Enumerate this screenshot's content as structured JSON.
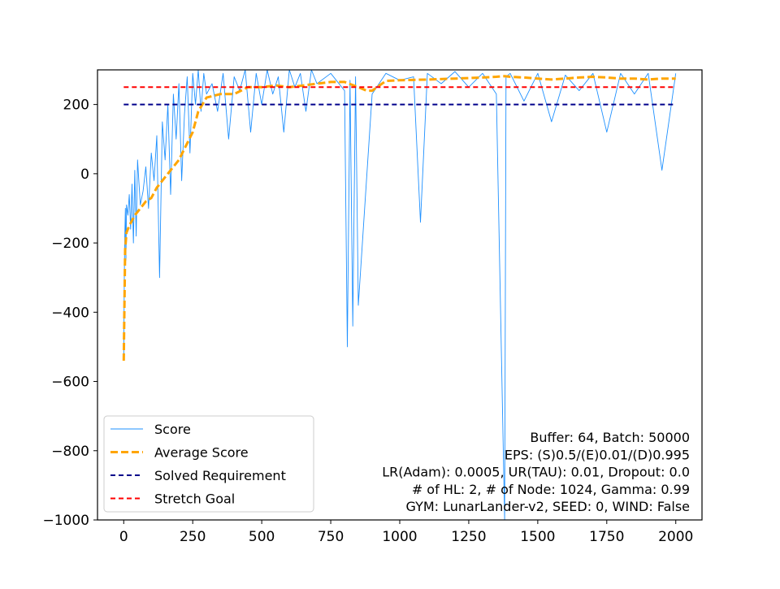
{
  "chart_data": {
    "type": "line",
    "title": "",
    "xlabel": "",
    "ylabel": "",
    "xlim": [
      -95,
      2095
    ],
    "ylim": [
      -1000,
      300
    ],
    "xticks": [
      0,
      250,
      500,
      750,
      1000,
      1250,
      1500,
      1750,
      2000
    ],
    "xtick_labels": [
      "0",
      "250",
      "500",
      "750",
      "1000",
      "1250",
      "1500",
      "1750",
      "2000"
    ],
    "yticks": [
      -1000,
      -800,
      -600,
      -400,
      -200,
      0,
      200
    ],
    "ytick_labels": [
      "−1000",
      "−800",
      "−600",
      "−400",
      "−200",
      "0",
      "200"
    ],
    "grid": false,
    "legend_position": "lower-left",
    "series": [
      {
        "name": "Score",
        "style": "solid",
        "color": "#1e90ff",
        "x": [
          0,
          2,
          4,
          6,
          8,
          10,
          15,
          20,
          25,
          30,
          35,
          40,
          45,
          50,
          60,
          70,
          80,
          90,
          100,
          110,
          120,
          130,
          140,
          150,
          160,
          170,
          180,
          190,
          200,
          210,
          220,
          230,
          240,
          250,
          260,
          270,
          280,
          290,
          300,
          320,
          340,
          360,
          380,
          400,
          420,
          440,
          460,
          480,
          500,
          520,
          540,
          560,
          580,
          600,
          620,
          640,
          660,
          680,
          700,
          750,
          800,
          810,
          820,
          830,
          840,
          850,
          900,
          950,
          1000,
          1050,
          1075,
          1100,
          1150,
          1200,
          1250,
          1300,
          1350,
          1380,
          1385,
          1400,
          1450,
          1500,
          1550,
          1600,
          1650,
          1700,
          1750,
          1800,
          1850,
          1900,
          1950,
          2000
        ],
        "y": [
          -540,
          -300,
          -180,
          -100,
          -250,
          -90,
          -120,
          -60,
          -160,
          -30,
          -200,
          10,
          -180,
          40,
          -90,
          -50,
          20,
          -100,
          60,
          -20,
          110,
          -300,
          150,
          40,
          200,
          -60,
          230,
          100,
          260,
          -20,
          170,
          280,
          60,
          290,
          200,
          300,
          180,
          290,
          230,
          260,
          180,
          290,
          100,
          280,
          240,
          300,
          120,
          290,
          200,
          300,
          230,
          280,
          120,
          300,
          250,
          290,
          180,
          300,
          260,
          290,
          240,
          -500,
          270,
          -440,
          280,
          -380,
          230,
          290,
          270,
          280,
          -140,
          290,
          260,
          295,
          250,
          290,
          230,
          -1000,
          280,
          290,
          210,
          290,
          150,
          285,
          240,
          290,
          120,
          290,
          230,
          290,
          10,
          290
        ]
      },
      {
        "name": "Average Score",
        "style": "dashed",
        "color": "#ffa500",
        "x": [
          0,
          5,
          10,
          20,
          40,
          60,
          80,
          100,
          120,
          150,
          200,
          250,
          270,
          300,
          350,
          400,
          450,
          500,
          550,
          600,
          650,
          700,
          750,
          800,
          850,
          880,
          900,
          950,
          1000,
          1100,
          1200,
          1300,
          1350,
          1380,
          1400,
          1450,
          1500,
          1550,
          1600,
          1650,
          1700,
          1750,
          1800,
          1850,
          1900,
          1950,
          2000
        ],
        "y": [
          -540,
          -220,
          -170,
          -150,
          -120,
          -100,
          -80,
          -70,
          -40,
          -10,
          40,
          120,
          180,
          220,
          230,
          230,
          250,
          250,
          255,
          250,
          255,
          260,
          265,
          265,
          250,
          240,
          240,
          268,
          270,
          272,
          275,
          278,
          280,
          282,
          280,
          278,
          275,
          272,
          275,
          278,
          280,
          278,
          275,
          275,
          272,
          275,
          275
        ]
      },
      {
        "name": "Solved Requirement",
        "style": "dashed",
        "color": "#00008b",
        "x": [
          0,
          2000
        ],
        "y": [
          200,
          200
        ]
      },
      {
        "name": "Stretch Goal",
        "style": "dashed",
        "color": "#ff0000",
        "x": [
          0,
          2000
        ],
        "y": [
          250,
          250
        ]
      }
    ],
    "annotations": [
      "Buffer: 64, Batch: 50000",
      "EPS: (S)0.5/(E)0.01/(D)0.995",
      "LR(Adam): 0.0005, UR(TAU): 0.01, Dropout: 0.0",
      "# of HL: 2, # of Node: 1024, Gamma: 0.99",
      "GYM: LunarLander-v2, SEED: 0, WIND: False"
    ]
  }
}
